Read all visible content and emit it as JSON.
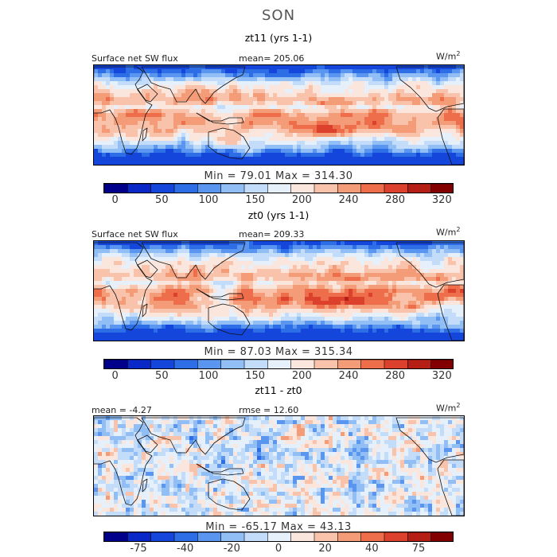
{
  "title": "SON",
  "colors": [
    "#00008b",
    "#0a28c8",
    "#1446dc",
    "#2d6ee6",
    "#5a96f0",
    "#91bef5",
    "#c3dcfa",
    "#e6f0fa",
    "#fae6dc",
    "#f8c3aa",
    "#f49b78",
    "#ee6e4b",
    "#dc412d",
    "#b41e14",
    "#820000"
  ],
  "chart_data": [
    {
      "type": "heatmap",
      "subtitle": "zt11 (yrs 1-1)",
      "variable": "Surface net SW flux",
      "header_left": "Surface net SW flux",
      "header_mid": "mean=  205.06",
      "units": "W/m",
      "units_sup": "2",
      "mean": 205.06,
      "minmax_label": "Min =   79.01  Max =  314.30",
      "min": 79.01,
      "max": 314.3,
      "colorbar_ticks": [
        "0",
        "50",
        "100",
        "150",
        "200",
        "240",
        "280",
        "320"
      ],
      "colorbar_ticks_at": [
        0.5,
        2.5,
        4.5,
        6.5,
        8.5,
        10.5,
        12.5,
        14.5
      ]
    },
    {
      "type": "heatmap",
      "subtitle": "zt0 (yrs 1-1)",
      "variable": "Surface net SW flux",
      "header_left": "Surface net SW flux",
      "header_mid": "mean=  209.33",
      "units": "W/m",
      "units_sup": "2",
      "mean": 209.33,
      "minmax_label": "Min =   87.03  Max =  315.34",
      "min": 87.03,
      "max": 315.34,
      "colorbar_ticks": [
        "0",
        "50",
        "100",
        "150",
        "200",
        "240",
        "280",
        "320"
      ],
      "colorbar_ticks_at": [
        0.5,
        2.5,
        4.5,
        6.5,
        8.5,
        10.5,
        12.5,
        14.5
      ]
    },
    {
      "type": "heatmap",
      "subtitle": "zt11 - zt0",
      "header_left": "mean =   -4.27",
      "header_mid": "rmse =   12.60",
      "units": "W/m",
      "units_sup": "2",
      "mean": -4.27,
      "rmse": 12.6,
      "minmax_label": "Min =  -65.17  Max =   43.13",
      "min": -65.17,
      "max": 43.13,
      "colorbar_ticks": [
        "-75",
        "-40",
        "-20",
        "0",
        "20",
        "40",
        "75"
      ],
      "colorbar_ticks_at": [
        1.5,
        3.5,
        5.5,
        7.5,
        9.5,
        11.5,
        13.5
      ]
    }
  ]
}
